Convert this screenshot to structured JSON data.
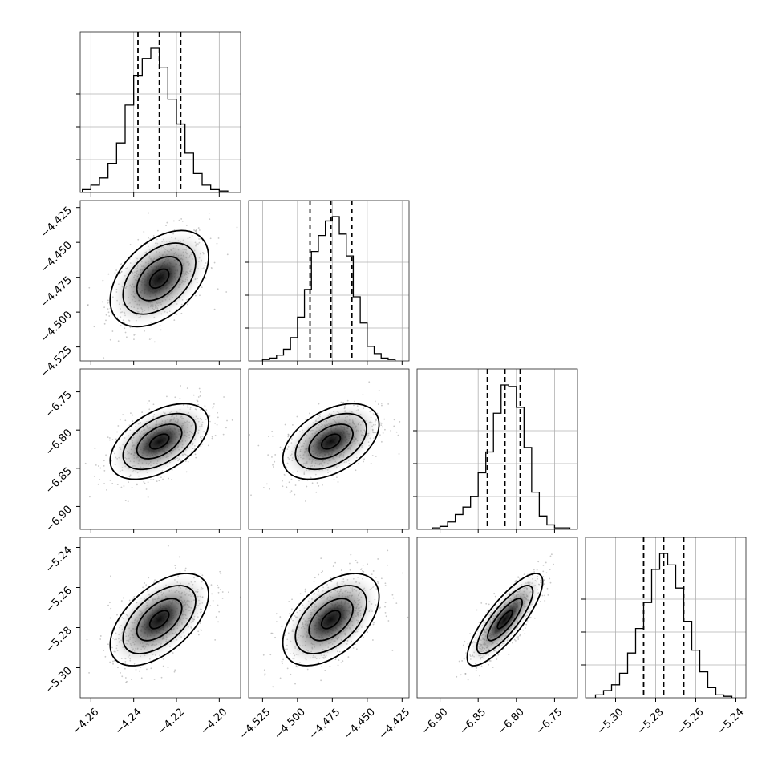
{
  "chart_data": {
    "type": "corner",
    "grid": true,
    "parameters": [
      {
        "range": [
          -4.265,
          -4.19
        ],
        "ticks": [
          -4.26,
          -4.24,
          -4.22,
          -4.2
        ],
        "tick_labels": [
          "−4.26",
          "−4.24",
          "−4.22",
          "−4.20"
        ],
        "quantiles": [
          -4.238,
          -4.228,
          -4.218
        ],
        "hist_edges": [
          -4.264,
          -4.26,
          -4.256,
          -4.252,
          -4.248,
          -4.244,
          -4.24,
          -4.236,
          -4.232,
          -4.228,
          -4.224,
          -4.22,
          -4.216,
          -4.212,
          -4.208,
          -4.204,
          -4.2,
          -4.196
        ],
        "hist_counts": [
          0.02,
          0.05,
          0.1,
          0.2,
          0.34,
          0.6,
          0.8,
          0.92,
          0.99,
          0.86,
          0.64,
          0.47,
          0.27,
          0.13,
          0.05,
          0.02,
          0.01
        ]
      },
      {
        "range": [
          -4.535,
          -4.42
        ],
        "ticks": [
          -4.525,
          -4.5,
          -4.475,
          -4.45,
          -4.425
        ],
        "tick_labels": [
          "−4.525",
          "−4.500",
          "−4.475",
          "−4.450",
          "−4.425"
        ],
        "quantiles": [
          -4.491,
          -4.476,
          -4.461
        ],
        "hist_edges": [
          -4.525,
          -4.52,
          -4.515,
          -4.51,
          -4.505,
          -4.5,
          -4.495,
          -4.49,
          -4.485,
          -4.48,
          -4.475,
          -4.47,
          -4.465,
          -4.46,
          -4.455,
          -4.45,
          -4.445,
          -4.44,
          -4.435,
          -4.43
        ],
        "hist_counts": [
          0.01,
          0.02,
          0.04,
          0.08,
          0.16,
          0.3,
          0.49,
          0.75,
          0.86,
          0.96,
          0.99,
          0.87,
          0.72,
          0.44,
          0.26,
          0.1,
          0.05,
          0.02,
          0.01
        ]
      },
      {
        "range": [
          -6.93,
          -6.72
        ],
        "ticks": [
          -6.9,
          -6.85,
          -6.8,
          -6.75
        ],
        "tick_labels": [
          "−6.90",
          "−6.85",
          "−6.80",
          "−6.75"
        ],
        "quantiles": [
          -6.838,
          -6.815,
          -6.795
        ],
        "hist_edges": [
          -6.91,
          -6.9,
          -6.89,
          -6.88,
          -6.87,
          -6.86,
          -6.85,
          -6.84,
          -6.83,
          -6.82,
          -6.81,
          -6.8,
          -6.79,
          -6.78,
          -6.77,
          -6.76,
          -6.75,
          -6.74,
          -6.73
        ],
        "hist_counts": [
          0.01,
          0.02,
          0.05,
          0.1,
          0.15,
          0.22,
          0.38,
          0.52,
          0.78,
          0.97,
          0.96,
          0.82,
          0.55,
          0.25,
          0.09,
          0.03,
          0.01,
          0.01
        ]
      },
      {
        "range": [
          -5.315,
          -5.235
        ],
        "ticks": [
          -5.3,
          -5.28,
          -5.26,
          -5.24
        ],
        "tick_labels": [
          "−5.30",
          "−5.28",
          "−5.26",
          "−5.24"
        ],
        "quantiles": [
          -5.286,
          -5.276,
          -5.266
        ],
        "hist_edges": [
          -5.31,
          -5.306,
          -5.302,
          -5.298,
          -5.294,
          -5.29,
          -5.286,
          -5.282,
          -5.278,
          -5.274,
          -5.27,
          -5.266,
          -5.262,
          -5.258,
          -5.254,
          -5.25,
          -5.246,
          -5.242
        ],
        "hist_counts": [
          0.02,
          0.05,
          0.09,
          0.17,
          0.31,
          0.48,
          0.66,
          0.89,
          1.0,
          0.92,
          0.76,
          0.53,
          0.33,
          0.18,
          0.07,
          0.02,
          0.01
        ]
      }
    ],
    "correlations": [
      {
        "i": 1,
        "j": 0,
        "rho": 0.45
      },
      {
        "i": 2,
        "j": 0,
        "rho": 0.5
      },
      {
        "i": 2,
        "j": 1,
        "rho": 0.45
      },
      {
        "i": 3,
        "j": 0,
        "rho": 0.55
      },
      {
        "i": 3,
        "j": 1,
        "rho": 0.5
      },
      {
        "i": 3,
        "j": 2,
        "rho": 0.82
      }
    ]
  }
}
